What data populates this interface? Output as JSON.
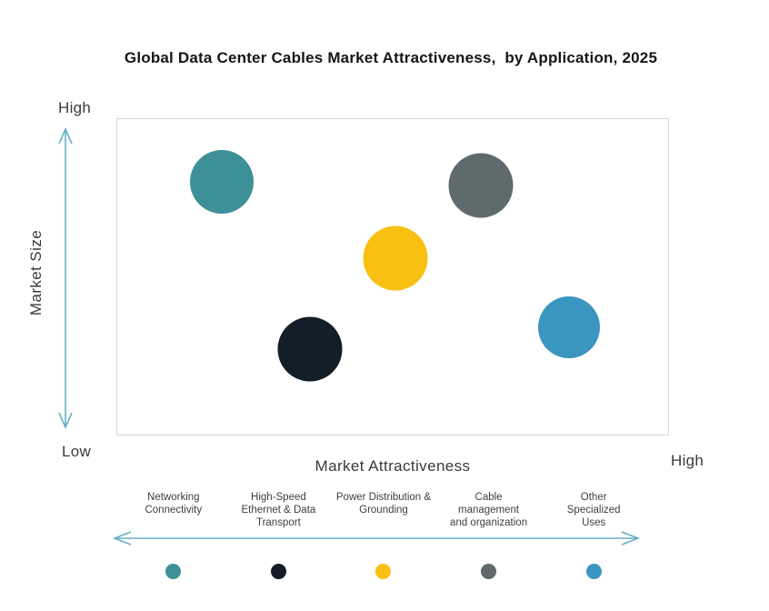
{
  "title": "Global Data Center Cables Market Attractiveness,  by Application, 2025",
  "y_axis": {
    "title": "Market Size",
    "top_label": "High",
    "bottom_label": "Low"
  },
  "x_axis": {
    "title": "Market Attractiveness",
    "right_label": "High"
  },
  "colors": {
    "arrow": "#68b0c6",
    "plot_border": "#d8d8d8",
    "text": "#3f3f3f",
    "title_text": "#161616"
  },
  "chart_data": {
    "type": "bubble",
    "title": "Global Data Center Cables Market Attractiveness, by Application, 2025",
    "xlabel": "Market Attractiveness",
    "ylabel": "Market Size",
    "x_range": [
      "Low",
      "High"
    ],
    "y_range": [
      "Low",
      "High"
    ],
    "grid": false,
    "legend_position": "bottom",
    "points": [
      {
        "label": "Networking Connectivity",
        "color": "#3e9098",
        "x": 0.19,
        "y": 0.8,
        "size": 70
      },
      {
        "label": "High-Speed Ethernet & Data Transport",
        "color": "#141e29",
        "x": 0.35,
        "y": 0.27,
        "size": 71
      },
      {
        "label": "Power Distribution & Grounding",
        "color": "#f8c112",
        "x": 0.505,
        "y": 0.56,
        "size": 71
      },
      {
        "label": "Cable management and organization",
        "color": "#5f6a6d",
        "x": 0.66,
        "y": 0.79,
        "size": 71
      },
      {
        "label": "Other Specialized Uses",
        "color": "#3b95c1",
        "x": 0.82,
        "y": 0.34,
        "size": 68
      }
    ]
  },
  "legend": {
    "items": [
      {
        "label": "Networking\nConnectivity",
        "color": "#3e9098"
      },
      {
        "label": "High-Speed\nEthernet & Data\nTransport",
        "color": "#141e29"
      },
      {
        "label": "Power Distribution &\nGrounding",
        "color": "#f8c112"
      },
      {
        "label": "Cable\nmanagement\nand organization",
        "color": "#5f6a6d"
      },
      {
        "label": "Other\nSpecialized\nUses",
        "color": "#3b95c1"
      }
    ]
  }
}
